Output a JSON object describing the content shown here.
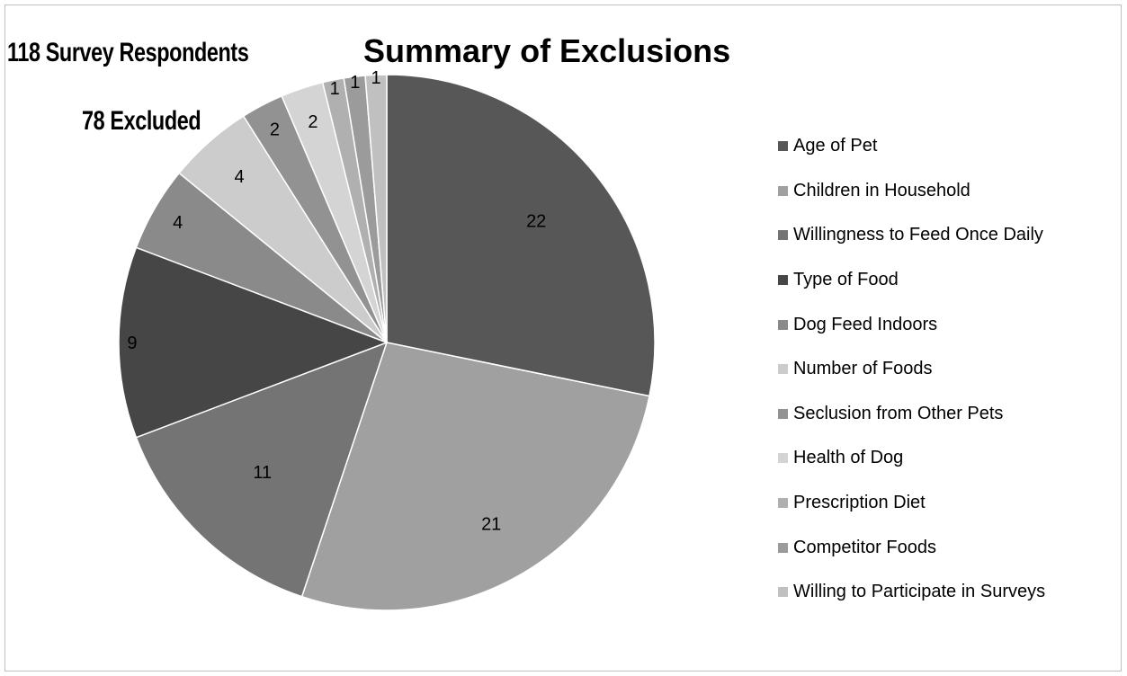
{
  "notes": {
    "respondents": "118 Survey Respondents",
    "excluded": "78 Excluded"
  },
  "chart_data": {
    "type": "pie",
    "title": "Summary of Exclusions",
    "legend_position": "right",
    "categories": [
      "Age of Pet",
      "Children in Household",
      "Willingness to Feed Once Daily",
      "Type of Food",
      "Dog Feed Indoors",
      "Number of Foods",
      "Seclusion from Other Pets",
      "Health of Dog",
      "Prescription Diet",
      "Competitor Foods",
      "Willing to Participate in Surveys"
    ],
    "values": [
      22,
      21,
      11,
      9,
      4,
      4,
      2,
      2,
      1,
      1,
      1
    ],
    "colors": [
      "#575757",
      "#a0a0a0",
      "#747474",
      "#464646",
      "#8a8a8a",
      "#cccccc",
      "#929292",
      "#d4d4d4",
      "#b0b0b0",
      "#9b9b9b",
      "#c0c0c0"
    ]
  }
}
